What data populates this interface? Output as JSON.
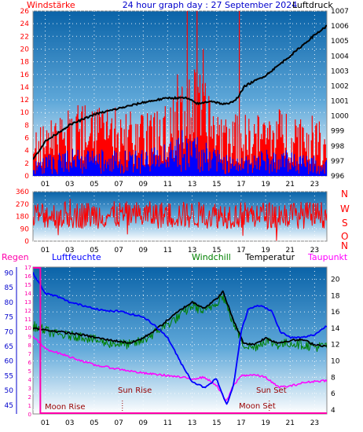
{
  "header": {
    "left_label": "Windstärke",
    "title": "24 hour graph day : 27 September 2024",
    "right_label": "Luftdruck"
  },
  "middle": {
    "compass": [
      "N",
      "W",
      "S",
      "O",
      "N"
    ]
  },
  "bottom": {
    "labels": {
      "regen": "Regen",
      "luftfeuchte": "Luftfeuchte",
      "windchill": "Windchill",
      "temperatur": "Temperatur",
      "taupunkt": "Taupunkt"
    },
    "annotations": {
      "moon_rise": "Moon Rise",
      "sun_rise": "Sun Rise",
      "sun_set": "Sun Set",
      "moon_set": "Moon Set"
    }
  },
  "colors": {
    "wind_gust": "#ff0000",
    "wind_speed": "#0000ff",
    "pressure": "#000000",
    "humidity": "#0000ff",
    "temperature": "#000000",
    "windchill": "#008000",
    "dewpoint": "#ff00ff",
    "rain": "#ff00aa"
  },
  "chart_data": [
    {
      "type": "bar",
      "name": "wind-and-pressure",
      "x_ticks": [
        "01",
        "03",
        "05",
        "07",
        "09",
        "11",
        "13",
        "15",
        "17",
        "19",
        "21",
        "23"
      ],
      "y_left_ticks": [
        0,
        2,
        4,
        6,
        8,
        10,
        12,
        14,
        16,
        18,
        20,
        22,
        24,
        26
      ],
      "y_left_range": [
        0,
        26
      ],
      "y_right_ticks": [
        996,
        997,
        998,
        999,
        1000,
        1001,
        1002,
        1003,
        1004,
        1005,
        1006,
        1007
      ],
      "y_right_range": [
        996,
        1007
      ],
      "pressure_keypoints": [
        [
          0,
          997.1
        ],
        [
          1,
          998.3
        ],
        [
          3,
          999.4
        ],
        [
          5,
          1000.1
        ],
        [
          7,
          1000.5
        ],
        [
          9,
          1000.9
        ],
        [
          11,
          1001.2
        ],
        [
          12.5,
          1001.2
        ],
        [
          13.5,
          1000.8
        ],
        [
          14.5,
          1001.0
        ],
        [
          15.5,
          1000.8
        ],
        [
          16,
          1000.8
        ],
        [
          16.7,
          1001.2
        ],
        [
          17.3,
          1002.0
        ],
        [
          19,
          1002.7
        ],
        [
          21,
          1004.0
        ],
        [
          23,
          1005.4
        ],
        [
          24,
          1006.0
        ]
      ],
      "gust_keypoints": [
        [
          0,
          5
        ],
        [
          3,
          8
        ],
        [
          6,
          8
        ],
        [
          9,
          7
        ],
        [
          11.5,
          9
        ],
        [
          12.5,
          13
        ],
        [
          13.5,
          12
        ],
        [
          15,
          8
        ],
        [
          16.5,
          7
        ],
        [
          18,
          7
        ],
        [
          21,
          8
        ],
        [
          24,
          6
        ]
      ],
      "speed_keypoints": [
        [
          0,
          2
        ],
        [
          3,
          3
        ],
        [
          6,
          3
        ],
        [
          9,
          3
        ],
        [
          11.5,
          4
        ],
        [
          12.5,
          6
        ],
        [
          13.5,
          5
        ],
        [
          15,
          3
        ],
        [
          16.5,
          2
        ],
        [
          18,
          3
        ],
        [
          21,
          3
        ],
        [
          24,
          2
        ]
      ],
      "gust_peaks": [
        [
          12.6,
          26
        ],
        [
          13.4,
          26
        ],
        [
          16.85,
          26
        ],
        [
          13.9,
          20
        ],
        [
          11.8,
          16
        ]
      ]
    },
    {
      "type": "line",
      "name": "wind-direction",
      "x_ticks": [
        "01",
        "03",
        "05",
        "07",
        "09",
        "11",
        "13",
        "15",
        "17",
        "19",
        "21",
        "23"
      ],
      "y_ticks": [
        0,
        90,
        180,
        270,
        360
      ],
      "y_range": [
        0,
        360
      ],
      "mean_direction": 190
    },
    {
      "type": "line",
      "name": "humidity-temperature-rain",
      "x_ticks": [
        "01",
        "03",
        "05",
        "07",
        "09",
        "11",
        "13",
        "15",
        "17",
        "19",
        "21",
        "23"
      ],
      "y_rain_ticks": [
        0,
        1,
        2,
        3,
        4,
        5,
        6,
        7,
        8,
        9,
        10,
        11,
        12,
        13,
        14,
        15,
        16,
        17
      ],
      "y_rain_range": [
        0,
        17
      ],
      "y_humidity_ticks": [
        45,
        50,
        55,
        60,
        65,
        70,
        75,
        80,
        85,
        90
      ],
      "y_humidity_range": [
        42,
        92
      ],
      "y_temp_ticks": [
        4,
        6,
        8,
        10,
        12,
        14,
        16,
        18,
        20
      ],
      "y_temp_range": [
        3.5,
        21.5
      ],
      "humidity_keypoints": [
        [
          0,
          90
        ],
        [
          1,
          83
        ],
        [
          2,
          82
        ],
        [
          3,
          80
        ],
        [
          4,
          79
        ],
        [
          5,
          78
        ],
        [
          6,
          77
        ],
        [
          7,
          77
        ],
        [
          8,
          76
        ],
        [
          9,
          75
        ],
        [
          10,
          72
        ],
        [
          11,
          68
        ],
        [
          12,
          60
        ],
        [
          13,
          53
        ],
        [
          14,
          51
        ],
        [
          15,
          54
        ],
        [
          15.8,
          45
        ],
        [
          16.4,
          52
        ],
        [
          17,
          70
        ],
        [
          17.6,
          78
        ],
        [
          18.5,
          79
        ],
        [
          19.5,
          77
        ],
        [
          20.2,
          70
        ],
        [
          21,
          68
        ],
        [
          22,
          68
        ],
        [
          23,
          69
        ],
        [
          24,
          72
        ]
      ],
      "temperature_keypoints": [
        [
          0,
          14
        ],
        [
          2,
          13.6
        ],
        [
          4,
          13.2
        ],
        [
          6,
          12.6
        ],
        [
          8,
          12.2
        ],
        [
          9,
          12.8
        ],
        [
          10,
          13.8
        ],
        [
          11,
          15
        ],
        [
          12,
          16.2
        ],
        [
          13,
          17.2
        ],
        [
          14,
          16.5
        ],
        [
          15,
          17.6
        ],
        [
          15.5,
          18.5
        ],
        [
          16,
          16.5
        ],
        [
          16.5,
          14.5
        ],
        [
          17.2,
          12.2
        ],
        [
          18,
          12
        ],
        [
          19,
          12.8
        ],
        [
          20,
          12.2
        ],
        [
          21,
          12.5
        ],
        [
          22,
          12.6
        ],
        [
          23,
          12
        ],
        [
          24,
          11.8
        ]
      ],
      "windchill_keypoints": [
        [
          0,
          14.3
        ],
        [
          2,
          13.2
        ],
        [
          4,
          13
        ],
        [
          6,
          12.2
        ],
        [
          8,
          12
        ],
        [
          9,
          12.5
        ],
        [
          10,
          13.5
        ],
        [
          11,
          14.5
        ],
        [
          12,
          15.5
        ],
        [
          13,
          16.8
        ],
        [
          14,
          16
        ],
        [
          15,
          17.2
        ],
        [
          15.5,
          18
        ],
        [
          16,
          16
        ],
        [
          16.5,
          14.2
        ],
        [
          17.2,
          12
        ],
        [
          18,
          11.6
        ],
        [
          19,
          12.5
        ],
        [
          20,
          12
        ],
        [
          21,
          12.2
        ],
        [
          22,
          12
        ],
        [
          23,
          11.7
        ],
        [
          24,
          11.8
        ]
      ],
      "dewpoint_keypoints": [
        [
          0,
          13
        ],
        [
          1,
          11.5
        ],
        [
          3,
          10.5
        ],
        [
          5,
          9.5
        ],
        [
          7,
          9
        ],
        [
          9,
          8.5
        ],
        [
          11,
          8.2
        ],
        [
          12,
          8
        ],
        [
          13,
          7.8
        ],
        [
          14,
          8
        ],
        [
          15,
          7
        ],
        [
          15.8,
          5
        ],
        [
          16.3,
          6.8
        ],
        [
          17,
          8.2
        ],
        [
          18,
          8.3
        ],
        [
          19,
          8
        ],
        [
          20,
          6.8
        ],
        [
          21,
          6.9
        ],
        [
          22,
          7.3
        ],
        [
          23,
          7.5
        ],
        [
          24,
          7.6
        ]
      ],
      "rain_total": 0,
      "sun_rise_hour": 7.3,
      "sun_set_hour": 19.3,
      "moon_rise_hour": 0.6,
      "moon_set_hour": 17.1
    }
  ]
}
